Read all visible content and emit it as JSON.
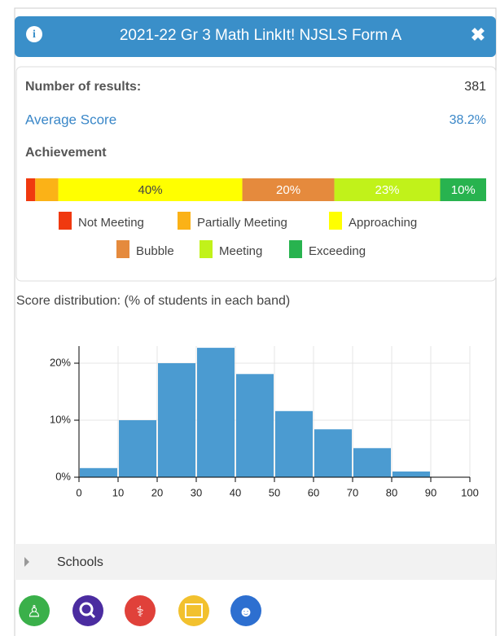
{
  "header": {
    "title": "2021-22 Gr 3 Math LinkIt! NJSLS Form A"
  },
  "summary": {
    "results_label": "Number of results:",
    "results_value": 381,
    "average_label": "Average Score",
    "average_value": 38.2,
    "average_value_label": "38.2%",
    "achievement_label": "Achievement"
  },
  "achievement": {
    "names": [
      "Not Meeting",
      "Partially Meeting",
      "Approaching",
      "Bubble",
      "Meeting",
      "Exceeding"
    ],
    "colors": [
      "#f0390f",
      "#fbb217",
      "#ffff00",
      "#e58a3d",
      "#c1f21a",
      "#28b34f"
    ],
    "values": [
      2,
      5,
      40,
      20,
      23,
      10
    ],
    "value_labels": [
      null,
      null,
      "40%",
      "20%",
      "23%",
      "10%"
    ]
  },
  "chart_data": {
    "type": "histogram",
    "title": "Score distribution: (% of students in each band)",
    "bins": [
      0,
      10,
      20,
      30,
      40,
      50,
      60,
      70,
      80,
      90,
      100
    ],
    "values": [
      1.6,
      10,
      20,
      22.7,
      18.1,
      11.6,
      8.4,
      5.1,
      1,
      0
    ],
    "color": "#4b9bd1",
    "xlim": [
      0,
      100
    ],
    "xticks": [
      0,
      10,
      20,
      30,
      40,
      50,
      60,
      70,
      80,
      90,
      100
    ],
    "ylim": [
      0,
      23
    ],
    "yticks": [
      {
        "value": 0,
        "label": "0%"
      },
      {
        "value": 10,
        "label": "10%"
      },
      {
        "value": 20,
        "label": "20%"
      }
    ],
    "grid": true
  },
  "schools": {
    "label": "Schools"
  }
}
